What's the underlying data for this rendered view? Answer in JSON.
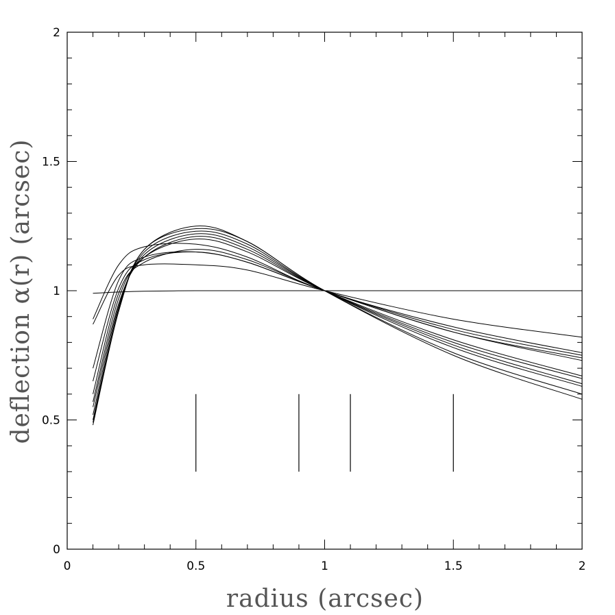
{
  "chart_data": {
    "type": "line",
    "title": "",
    "xlabel": "radius (arcsec)",
    "ylabel": "deflection α(r) (arcsec)",
    "xlim": [
      0,
      2
    ],
    "ylim": [
      0,
      2
    ],
    "xticks": [
      {
        "value": 0,
        "label": "0"
      },
      {
        "value": 0.5,
        "label": "0.5"
      },
      {
        "value": 1,
        "label": "1"
      },
      {
        "value": 1.5,
        "label": "1.5"
      },
      {
        "value": 2,
        "label": "2"
      }
    ],
    "yticks": [
      {
        "value": 0,
        "label": "0"
      },
      {
        "value": 0.5,
        "label": "0.5"
      },
      {
        "value": 1,
        "label": "1"
      },
      {
        "value": 1.5,
        "label": "1.5"
      },
      {
        "value": 2,
        "label": "2"
      }
    ],
    "minor_tick_step": 0.1,
    "grid": false,
    "legend": "none",
    "line_color": "#000000",
    "series": [
      {
        "x": [
          0.1,
          0.2,
          0.3,
          0.5,
          0.7,
          1.0,
          1.5,
          2.0
        ],
        "y": [
          0.99,
          0.995,
          0.998,
          1.0,
          1.0,
          1.0,
          1.0,
          1.0
        ]
      },
      {
        "x": [
          0.1,
          0.2,
          0.3,
          0.5,
          0.7,
          1.0,
          1.5,
          2.0
        ],
        "y": [
          0.87,
          1.06,
          1.1,
          1.1,
          1.08,
          1.0,
          0.89,
          0.82
        ]
      },
      {
        "x": [
          0.1,
          0.2,
          0.3,
          0.5,
          0.7,
          1.0,
          1.5,
          2.0
        ],
        "y": [
          0.89,
          1.1,
          1.17,
          1.18,
          1.13,
          1.0,
          0.86,
          0.76
        ]
      },
      {
        "x": [
          0.1,
          0.2,
          0.3,
          0.5,
          0.7,
          1.0,
          1.5,
          2.0
        ],
        "y": [
          0.7,
          1.04,
          1.13,
          1.15,
          1.11,
          1.0,
          0.85,
          0.75
        ]
      },
      {
        "x": [
          0.1,
          0.2,
          0.3,
          0.5,
          0.7,
          1.0,
          1.5,
          2.0
        ],
        "y": [
          0.65,
          1.01,
          1.12,
          1.15,
          1.11,
          1.0,
          0.84,
          0.74
        ]
      },
      {
        "x": [
          0.1,
          0.2,
          0.3,
          0.5,
          0.7,
          1.0,
          1.5,
          2.0
        ],
        "y": [
          0.6,
          0.99,
          1.11,
          1.16,
          1.12,
          1.0,
          0.84,
          0.73
        ]
      },
      {
        "x": [
          0.1,
          0.2,
          0.3,
          0.5,
          0.7,
          1.0,
          1.5,
          2.0
        ],
        "y": [
          0.57,
          0.97,
          1.13,
          1.2,
          1.15,
          1.0,
          0.81,
          0.67
        ]
      },
      {
        "x": [
          0.1,
          0.2,
          0.3,
          0.5,
          0.7,
          1.0,
          1.5,
          2.0
        ],
        "y": [
          0.55,
          0.95,
          1.13,
          1.21,
          1.16,
          1.0,
          0.8,
          0.66
        ]
      },
      {
        "x": [
          0.1,
          0.2,
          0.3,
          0.5,
          0.7,
          1.0,
          1.5,
          2.0
        ],
        "y": [
          0.52,
          0.94,
          1.14,
          1.22,
          1.17,
          1.0,
          0.79,
          0.64
        ]
      },
      {
        "x": [
          0.1,
          0.2,
          0.3,
          0.5,
          0.7,
          1.0,
          1.5,
          2.0
        ],
        "y": [
          0.5,
          0.93,
          1.15,
          1.23,
          1.18,
          1.0,
          0.78,
          0.63
        ]
      },
      {
        "x": [
          0.1,
          0.2,
          0.3,
          0.5,
          0.7,
          1.0,
          1.5,
          2.0
        ],
        "y": [
          0.48,
          0.92,
          1.16,
          1.24,
          1.19,
          1.0,
          0.76,
          0.6
        ]
      },
      {
        "x": [
          0.1,
          0.2,
          0.3,
          0.5,
          0.7,
          1.0,
          1.5,
          2.0
        ],
        "y": [
          0.49,
          0.93,
          1.16,
          1.25,
          1.19,
          1.0,
          0.75,
          0.58
        ]
      }
    ],
    "vertical_markers": [
      {
        "x": 0.5,
        "y_from": 0.3,
        "y_to": 0.6
      },
      {
        "x": 0.9,
        "y_from": 0.3,
        "y_to": 0.6
      },
      {
        "x": 1.1,
        "y_from": 0.3,
        "y_to": 0.6
      },
      {
        "x": 1.5,
        "y_from": 0.3,
        "y_to": 0.6
      }
    ]
  }
}
